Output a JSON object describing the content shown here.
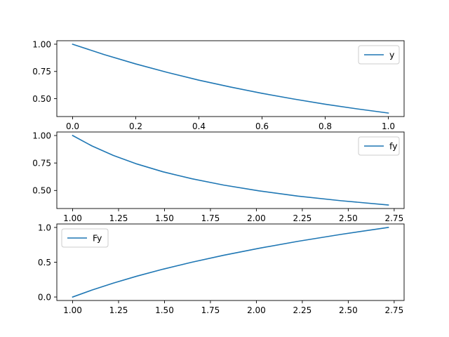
{
  "chart_data": [
    {
      "type": "line",
      "title": "",
      "xlabel": "",
      "ylabel": "",
      "xlim": [
        -0.05,
        1.05
      ],
      "ylim": [
        0.336,
        1.032
      ],
      "xticks": [
        0.0,
        0.2,
        0.4,
        0.6,
        0.8,
        1.0
      ],
      "xtick_labels": [
        "0.0",
        "0.2",
        "0.4",
        "0.6",
        "0.8",
        "1.0"
      ],
      "yticks": [
        0.5,
        0.75,
        1.0
      ],
      "ytick_labels": [
        "0.50",
        "0.75",
        "1.00"
      ],
      "legend": "upper right",
      "grid": false,
      "series": [
        {
          "name": "y",
          "color": "#1f77b4",
          "x": [
            0.0,
            0.1,
            0.2,
            0.3,
            0.4,
            0.5,
            0.6,
            0.7,
            0.8,
            0.9,
            1.0
          ],
          "y": [
            1.0,
            0.905,
            0.819,
            0.741,
            0.67,
            0.607,
            0.549,
            0.497,
            0.449,
            0.407,
            0.368
          ]
        }
      ]
    },
    {
      "type": "line",
      "title": "",
      "xlabel": "",
      "ylabel": "",
      "xlim": [
        0.914,
        2.804
      ],
      "ylim": [
        0.336,
        1.032
      ],
      "xticks": [
        1.0,
        1.25,
        1.5,
        1.75,
        2.0,
        2.25,
        2.5,
        2.75
      ],
      "xtick_labels": [
        "1.00",
        "1.25",
        "1.50",
        "1.75",
        "2.00",
        "2.25",
        "2.50",
        "2.75"
      ],
      "yticks": [
        0.5,
        0.75,
        1.0
      ],
      "ytick_labels": [
        "0.50",
        "0.75",
        "1.00"
      ],
      "legend": "upper right",
      "grid": false,
      "series": [
        {
          "name": "fy",
          "color": "#1f77b4",
          "x": [
            1.0,
            1.1052,
            1.2214,
            1.3499,
            1.4918,
            1.6487,
            1.8221,
            2.0138,
            2.2255,
            2.4596,
            2.7183
          ],
          "y": [
            1.0,
            0.905,
            0.819,
            0.741,
            0.67,
            0.607,
            0.549,
            0.497,
            0.449,
            0.407,
            0.368
          ]
        }
      ]
    },
    {
      "type": "line",
      "title": "",
      "xlabel": "",
      "ylabel": "",
      "xlim": [
        0.914,
        2.804
      ],
      "ylim": [
        -0.05,
        1.05
      ],
      "xticks": [
        1.0,
        1.25,
        1.5,
        1.75,
        2.0,
        2.25,
        2.5,
        2.75
      ],
      "xtick_labels": [
        "1.00",
        "1.25",
        "1.50",
        "1.75",
        "2.00",
        "2.25",
        "2.50",
        "2.75"
      ],
      "yticks": [
        0.0,
        0.5,
        1.0
      ],
      "ytick_labels": [
        "0.0",
        "0.5",
        "1.0"
      ],
      "legend": "upper left",
      "grid": false,
      "series": [
        {
          "name": "Fy",
          "color": "#1f77b4",
          "x": [
            1.0,
            1.1052,
            1.2214,
            1.3499,
            1.4918,
            1.6487,
            1.8221,
            2.0138,
            2.2255,
            2.4596,
            2.7183
          ],
          "y": [
            0.0,
            0.1,
            0.2,
            0.3,
            0.4,
            0.5,
            0.6,
            0.7,
            0.8,
            0.9,
            1.0
          ]
        }
      ]
    }
  ]
}
